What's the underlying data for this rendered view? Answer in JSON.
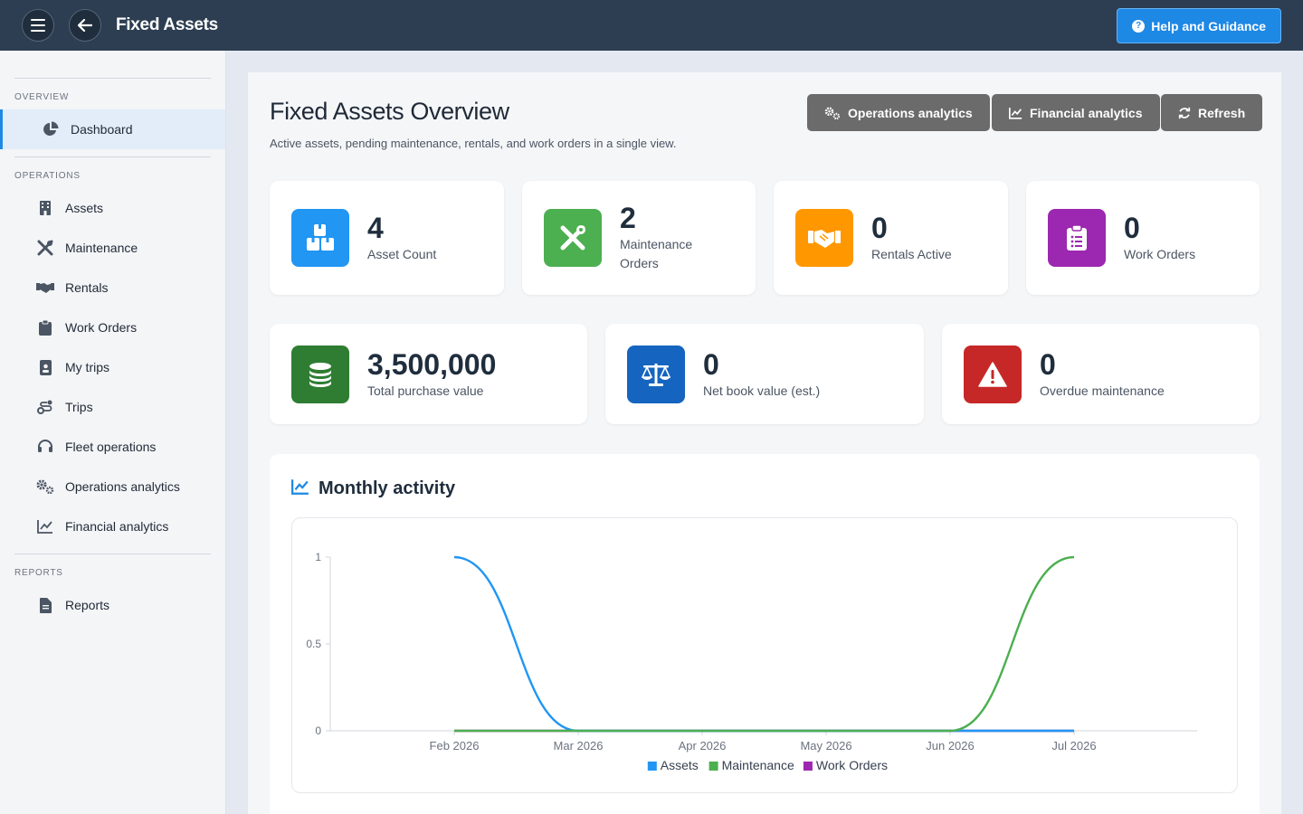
{
  "header": {
    "app_title": "Fixed Assets",
    "help_label": "Help and Guidance",
    "help_icon_glyph": "?"
  },
  "sidebar": {
    "sections": [
      {
        "title": "OVERVIEW"
      },
      {
        "title": "OPERATIONS"
      },
      {
        "title": "REPORTS"
      }
    ],
    "items": [
      {
        "label": "Dashboard",
        "icon": "pie-chart-icon",
        "active": true
      },
      {
        "label": "Assets",
        "icon": "building-icon"
      },
      {
        "label": "Maintenance",
        "icon": "tools-icon"
      },
      {
        "label": "Rentals",
        "icon": "handshake-icon"
      },
      {
        "label": "Work Orders",
        "icon": "clipboard-icon"
      },
      {
        "label": "My trips",
        "icon": "id-badge-icon"
      },
      {
        "label": "Trips",
        "icon": "route-icon"
      },
      {
        "label": "Fleet operations",
        "icon": "headset-icon"
      },
      {
        "label": "Operations analytics",
        "icon": "gears-icon"
      },
      {
        "label": "Financial analytics",
        "icon": "line-chart-icon"
      },
      {
        "label": "Reports",
        "icon": "file-icon"
      }
    ]
  },
  "page": {
    "title": "Fixed Assets Overview",
    "subtitle": "Active assets, pending maintenance, rentals, and work orders in a single view.",
    "actions": [
      {
        "label": "Operations analytics",
        "icon": "gears-icon"
      },
      {
        "label": "Financial analytics",
        "icon": "line-chart-icon"
      },
      {
        "label": "Refresh",
        "icon": "refresh-icon"
      }
    ]
  },
  "stats_row1": [
    {
      "value": "4",
      "caption": "Asset Count",
      "color": "#2196f3",
      "icon": "boxes-icon"
    },
    {
      "value": "2",
      "caption": "Maintenance Orders",
      "color": "#4caf50",
      "icon": "tools-icon"
    },
    {
      "value": "0",
      "caption": "Rentals Active",
      "color": "#ff9800",
      "icon": "handshake-icon"
    },
    {
      "value": "0",
      "caption": "Work Orders",
      "color": "#9c27b0",
      "icon": "clipboard-list-icon"
    }
  ],
  "stats_row2": [
    {
      "value": "3,500,000",
      "caption": "Total purchase value",
      "color": "#2e7d32",
      "icon": "coins-icon"
    },
    {
      "value": "0",
      "caption": "Net book value (est.)",
      "color": "#1565c0",
      "icon": "scale-icon"
    },
    {
      "value": "0",
      "caption": "Overdue maintenance",
      "color": "#c62828",
      "icon": "warning-icon"
    }
  ],
  "activity": {
    "title": "Monthly activity"
  },
  "chart_data": {
    "type": "line",
    "x": [
      "Feb 2026",
      "Mar 2026",
      "Apr 2026",
      "May 2026",
      "Jun 2026",
      "Jul 2026"
    ],
    "y_ticks": [
      "0",
      "0.5",
      "1"
    ],
    "ylim": [
      0,
      1
    ],
    "legend_position": "bottom",
    "series": [
      {
        "name": "Assets",
        "color": "#2196f3",
        "values": [
          1,
          0,
          0,
          0,
          0,
          0
        ]
      },
      {
        "name": "Maintenance",
        "color": "#4caf50",
        "values": [
          0,
          0,
          0,
          0,
          0,
          1
        ]
      },
      {
        "name": "Work Orders",
        "color": "#9c27b0",
        "values": [
          0,
          0,
          0,
          0,
          0,
          0
        ]
      }
    ]
  }
}
